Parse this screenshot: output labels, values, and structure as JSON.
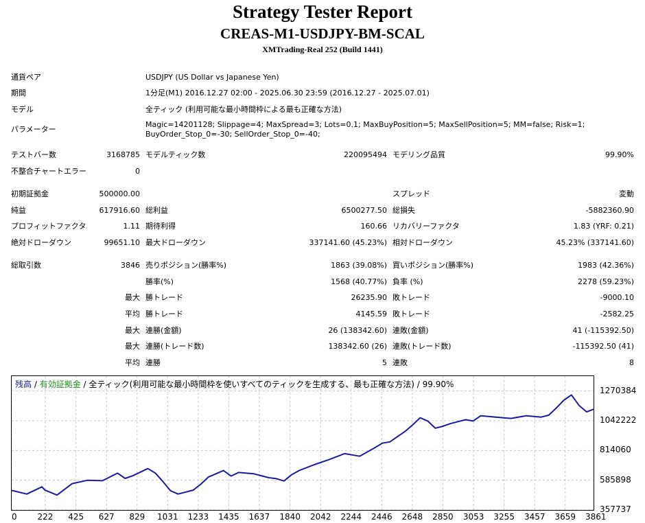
{
  "header": {
    "title": "Strategy Tester Report",
    "ea_name": "CREAS-M1-USDJPY-BM-SCAL",
    "server": "XMTrading-Real 252 (Build 1441)"
  },
  "info": {
    "symbol_label": "通貨ペア",
    "symbol_value": "USDJPY (US Dollar vs Japanese Yen)",
    "period_label": "期間",
    "period_value": "1分足(M1) 2016.12.27 02:00 - 2025.06.30 23:59 (2016.12.27 - 2025.07.01)",
    "model_label": "モデル",
    "model_value": "全ティック (利用可能な最小時間枠による最も正確な方法)",
    "params_label": "パラメーター",
    "params_line1": "Magic=14201128; Slippage=4; MaxSpread=3; Lots=0.1; MaxBuyPosition=5; MaxSellPosition=5; MM=false; Risk=1;",
    "params_line2": "BuyOrder_Stop_0=-30; SellOrder_Stop_0=-40;"
  },
  "stats": {
    "bars_label": "テストバー数",
    "bars_value": "3168785",
    "ticks_label": "モデルティック数",
    "ticks_value": "220095494",
    "quality_label": "モデリング品質",
    "quality_value": "99.90%",
    "mismatch_label": "不整合チャートエラー",
    "mismatch_value": "0",
    "deposit_label": "初期証拠金",
    "deposit_value": "500000.00",
    "spread_label": "スプレッド",
    "spread_value": "変動",
    "net_label": "純益",
    "net_value": "617916.60",
    "gross_profit_label": "総利益",
    "gross_profit_value": "6500277.50",
    "gross_loss_label": "総損失",
    "gross_loss_value": "-5882360.90",
    "pf_label": "プロフィットファクタ",
    "pf_value": "1.11",
    "payoff_label": "期待利得",
    "payoff_value": "160.66",
    "recovery_label": "リカバリーファクタ",
    "recovery_value": "1.83 (YRF: 0.21)",
    "abs_dd_label": "絶対ドローダウン",
    "abs_dd_value": "99651.10",
    "max_dd_label": "最大ドローダウン",
    "max_dd_value": "337141.60 (45.23%)",
    "rel_dd_label": "相対ドローダウン",
    "rel_dd_value": "45.23% (337141.60)",
    "trades_label": "総取引数",
    "trades_value": "3846",
    "short_label": "売りポジション(勝率%)",
    "short_value": "1863 (39.08%)",
    "long_label": "買いポジション(勝率%)",
    "long_value": "1983 (42.36%)",
    "winrate_label": "勝率(%)",
    "winrate_value": "1568 (40.77%)",
    "lossrate_label": "負率 (%)",
    "lossrate_value": "2278 (59.23%)",
    "max_prefix": "最大",
    "avg_prefix": "平均",
    "largest_win_label": "勝トレード",
    "largest_win_value": "26235.90",
    "largest_loss_label": "敗トレード",
    "largest_loss_value": "-9000.10",
    "avg_win_label": "勝トレード",
    "avg_win_value": "4145.59",
    "avg_loss_label": "敗トレード",
    "avg_loss_value": "-2582.25",
    "max_cons_wins_label": "連勝(金額)",
    "max_cons_wins_value": "26 (138342.60)",
    "max_cons_losses_label": "連敗(金額)",
    "max_cons_losses_value": "41 (-115392.50)",
    "max_cons_profit_label": "連勝(トレード数)",
    "max_cons_profit_value": "138342.60 (26)",
    "max_cons_loss_label": "連敗(トレード数)",
    "max_cons_loss_value": "-115392.50 (41)",
    "avg_cons_wins_label": "連勝",
    "avg_cons_wins_value": "5",
    "avg_cons_losses_label": "連敗",
    "avg_cons_losses_value": "8"
  },
  "graph": {
    "legend_balance": "残高",
    "legend_sep1": " / ",
    "legend_equity": "有効証拠金",
    "legend_rest": " / 全ティック(利用可能な最小時間枠を使いすべてのティックを生成する、最も正確な方法) / 99.90%"
  },
  "chart_data": {
    "type": "line",
    "title": "",
    "xlabel": "",
    "ylabel": "",
    "xlim": [
      0,
      3846
    ],
    "ylim": [
      357737,
      1384465
    ],
    "x_ticks": [
      "0",
      "222",
      "425",
      "627",
      "829",
      "1031",
      "1233",
      "1435",
      "1637",
      "1840",
      "2042",
      "2244",
      "2446",
      "2648",
      "2850",
      "3053",
      "3255",
      "3457",
      "3659",
      "3861"
    ],
    "y_ticks": [
      "1270384",
      "1042222",
      "814060",
      "585898",
      "357737"
    ],
    "grid": true,
    "colors": {
      "balance": "#1a1a9e",
      "equity": "#1f8a1f"
    },
    "series": [
      {
        "name": "残高",
        "x": [
          0,
          100,
          200,
          220,
          300,
          400,
          500,
          600,
          700,
          750,
          800,
          900,
          950,
          1000,
          1050,
          1100,
          1200,
          1250,
          1300,
          1400,
          1450,
          1500,
          1600,
          1700,
          1750,
          1800,
          1850,
          1900,
          2000,
          2100,
          2200,
          2300,
          2400,
          2450,
          2500,
          2550,
          2600,
          2650,
          2700,
          2750,
          2800,
          2850,
          2900,
          3000,
          3050,
          3100,
          3200,
          3300,
          3400,
          3500,
          3550,
          3600,
          3650,
          3700,
          3750,
          3800,
          3846
        ],
        "y": [
          508000,
          480000,
          535000,
          510000,
          472000,
          560000,
          585000,
          582000,
          640000,
          600000,
          620000,
          675000,
          640000,
          575000,
          505000,
          480000,
          510000,
          555000,
          610000,
          660000,
          618000,
          645000,
          635000,
          605000,
          598000,
          580000,
          628000,
          660000,
          705000,
          745000,
          790000,
          770000,
          835000,
          870000,
          880000,
          920000,
          960000,
          1010000,
          1065000,
          1040000,
          985000,
          1000000,
          1020000,
          1050000,
          1040000,
          1080000,
          1070000,
          1060000,
          1080000,
          1070000,
          1085000,
          1140000,
          1200000,
          1240000,
          1160000,
          1110000,
          1130000
        ]
      }
    ]
  }
}
